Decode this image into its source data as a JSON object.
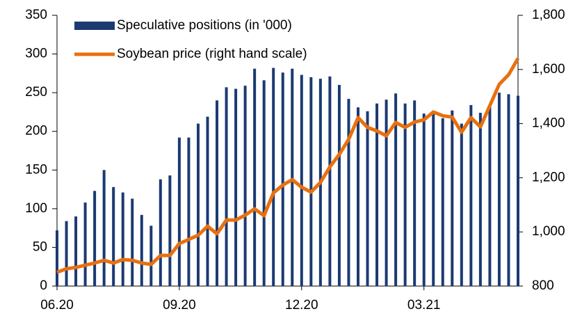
{
  "chart_data": {
    "type": "bar_line",
    "categories": [
      "06.20",
      null,
      null,
      null,
      null,
      null,
      null,
      null,
      null,
      null,
      null,
      null,
      null,
      "09.20",
      null,
      null,
      null,
      null,
      null,
      null,
      null,
      null,
      null,
      null,
      null,
      null,
      "12.20",
      null,
      null,
      null,
      null,
      null,
      null,
      null,
      null,
      null,
      null,
      null,
      null,
      "03.21",
      null,
      null,
      null,
      null,
      null,
      null,
      null,
      null,
      null,
      null
    ],
    "series": [
      {
        "name": "Speculative positions (in '000)",
        "color": "#1b3a72",
        "type": "bar",
        "values": [
          72,
          84,
          90,
          108,
          123,
          150,
          128,
          121,
          113,
          92,
          78,
          138,
          143,
          192,
          192,
          210,
          219,
          240,
          257,
          255,
          259,
          281,
          266,
          282,
          276,
          281,
          273,
          270,
          268,
          271,
          260,
          242,
          231,
          226,
          236,
          241,
          249,
          236,
          240,
          223,
          224,
          217,
          227,
          210,
          234,
          224,
          234,
          250,
          248,
          246
        ]
      },
      {
        "name": "Soybean price (right hand scale)",
        "color": "#e8700f",
        "type": "line",
        "axis": "y2",
        "values": [
          851,
          864,
          869,
          877,
          885,
          895,
          885,
          898,
          895,
          885,
          880,
          913,
          913,
          957,
          972,
          988,
          1021,
          993,
          1044,
          1044,
          1062,
          1085,
          1060,
          1144,
          1173,
          1193,
          1165,
          1147,
          1183,
          1240,
          1286,
          1342,
          1422,
          1386,
          1373,
          1355,
          1404,
          1386,
          1406,
          1414,
          1443,
          1429,
          1424,
          1368,
          1422,
          1388,
          1466,
          1545,
          1581,
          1641
        ]
      }
    ],
    "ylim": [
      0,
      350
    ],
    "yticks": [
      0,
      50,
      100,
      150,
      200,
      250,
      300,
      350
    ],
    "y2lim": [
      800,
      1800
    ],
    "y2ticks": [
      800,
      {
        "value": 1000,
        "label": "1,000"
      },
      {
        "value": 1200,
        "label": "1,200"
      },
      {
        "value": 1400,
        "label": "1,400"
      },
      {
        "value": 1600,
        "label": "1,600"
      },
      {
        "value": 1800,
        "label": "1,800"
      }
    ],
    "legend": "top-left",
    "grid": false
  }
}
